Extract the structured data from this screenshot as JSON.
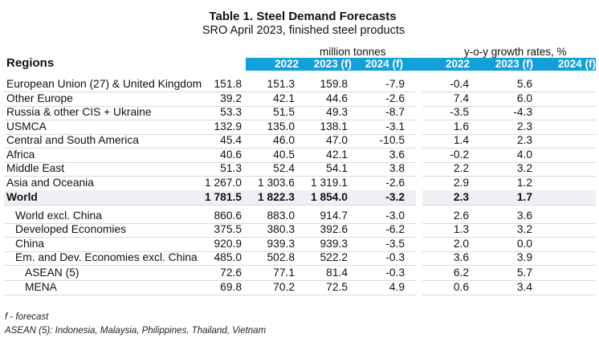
{
  "title": "Table 1. Steel Demand Forecasts",
  "subtitle": "SRO April 2023, finished steel products",
  "header": {
    "regions": "Regions",
    "unit_mt": "million tonnes",
    "unit_yoy": "y-o-y growth rates, %",
    "columns": [
      "2022",
      "2023 (f)",
      "2024 (f)",
      "2022",
      "2023 (f)",
      "2024 (f)"
    ]
  },
  "colors": {
    "header_bar": "#11a0d9",
    "world_row_bg": "#eef0f3"
  },
  "rows": [
    {
      "label": "European Union (27) & United Kingdom",
      "values": [
        "151.8",
        "151.3",
        "159.8",
        "-7.9",
        "-0.4",
        "5.6"
      ]
    },
    {
      "label": "Other Europe",
      "values": [
        "39.2",
        "42.1",
        "44.6",
        "-2.6",
        "7.4",
        "6.0"
      ]
    },
    {
      "label": "Russia & other CIS + Ukraine",
      "values": [
        "53.3",
        "51.5",
        "49.3",
        "-8.7",
        "-3.5",
        "-4.3"
      ]
    },
    {
      "label": "USMCA",
      "values": [
        "132.9",
        "135.0",
        "138.1",
        "-3.1",
        "1.6",
        "2.3"
      ]
    },
    {
      "label": "Central and South America",
      "values": [
        "45.4",
        "46.0",
        "47.0",
        "-10.5",
        "1.4",
        "2.3"
      ]
    },
    {
      "label": "Africa",
      "values": [
        "40.6",
        "40.5",
        "42.1",
        "3.6",
        "-0.2",
        "4.0"
      ]
    },
    {
      "label": "Middle East",
      "values": [
        "51.3",
        "52.4",
        "54.1",
        "3.8",
        "2.2",
        "3.2"
      ]
    },
    {
      "label": "Asia and Oceania",
      "values": [
        "1 267.0",
        "1 303.6",
        "1 319.1",
        "-2.6",
        "2.9",
        "1.2"
      ]
    },
    {
      "label": "World",
      "values": [
        "1 781.5",
        "1 822.3",
        "1 854.0",
        "-3.2",
        "2.3",
        "1.7"
      ]
    },
    {
      "label": "World excl. China",
      "values": [
        "860.6",
        "883.0",
        "914.7",
        "-3.0",
        "2.6",
        "3.6"
      ]
    },
    {
      "label": "Developed Economies",
      "values": [
        "375.5",
        "380.3",
        "392.6",
        "-6.2",
        "1.3",
        "3.2"
      ]
    },
    {
      "label": "China",
      "values": [
        "920.9",
        "939.3",
        "939.3",
        "-3.5",
        "2.0",
        "0.0"
      ]
    },
    {
      "label": "Em. and Dev. Economies excl. China",
      "values": [
        "485.0",
        "502.8",
        "522.2",
        "-0.3",
        "3.6",
        "3.9"
      ]
    },
    {
      "label": "ASEAN (5)",
      "values": [
        "72.6",
        "77.1",
        "81.4",
        "-0.3",
        "6.2",
        "5.7"
      ]
    },
    {
      "label": "MENA",
      "values": [
        "69.8",
        "70.2",
        "72.5",
        "4.9",
        "0.6",
        "3.4"
      ]
    }
  ],
  "footnotes": {
    "forecast": "f - forecast",
    "asean": "ASEAN (5): Indonesia, Malaysia, Philippines, Thailand, Vietnam"
  }
}
